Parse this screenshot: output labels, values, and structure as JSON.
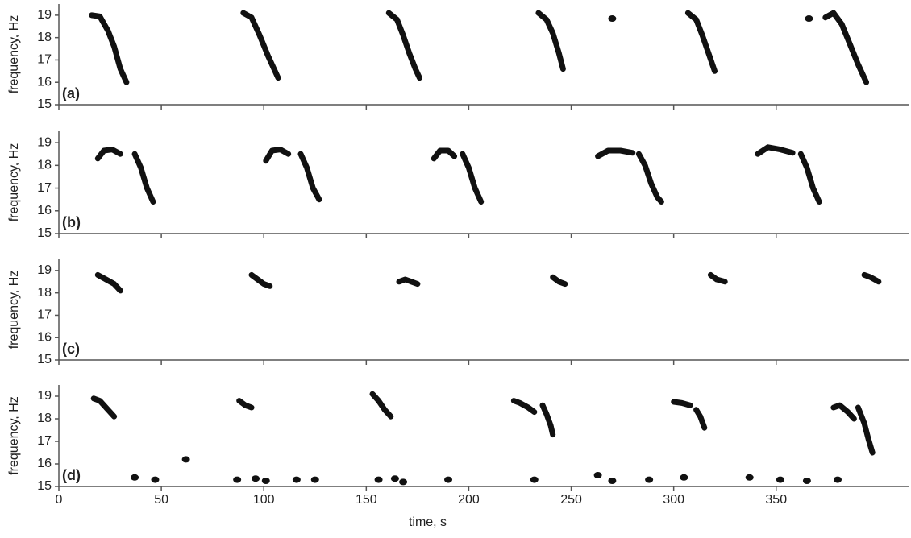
{
  "chart_data": [
    {
      "type": "spectrogram",
      "label": "(a)",
      "ylabel": "frequency, Hz",
      "color": "#111111",
      "xlim": [
        0,
        415
      ],
      "xticks": [
        0,
        50,
        100,
        150,
        200,
        250,
        300,
        350
      ],
      "ylim": [
        15,
        19.5
      ],
      "yticks": [
        15,
        16,
        17,
        18,
        19
      ],
      "calls": [
        {
          "x": [
            16,
            20,
            24,
            27,
            30,
            33
          ],
          "values": [
            19,
            18.95,
            18.3,
            17.6,
            16.6,
            16
          ]
        },
        {
          "x": [
            90,
            94,
            98,
            102,
            105,
            107
          ],
          "values": [
            19.1,
            18.9,
            18.1,
            17.2,
            16.6,
            16.2
          ]
        },
        {
          "x": [
            161,
            165,
            168,
            171,
            174,
            176
          ],
          "values": [
            19.1,
            18.8,
            18.1,
            17.3,
            16.6,
            16.2
          ]
        },
        {
          "x": [
            234,
            238,
            241,
            244,
            246
          ],
          "values": [
            19.1,
            18.8,
            18.2,
            17.3,
            16.6
          ]
        },
        {
          "x": [
            270
          ],
          "values": [
            18.85
          ]
        },
        {
          "x": [
            307,
            311,
            314,
            317,
            320
          ],
          "values": [
            19.1,
            18.8,
            18.1,
            17.3,
            16.5
          ]
        },
        {
          "x": [
            366
          ],
          "values": [
            18.85
          ]
        },
        {
          "x": [
            374,
            378,
            382,
            386,
            390,
            394
          ],
          "values": [
            18.9,
            19.1,
            18.6,
            17.7,
            16.8,
            16
          ]
        }
      ]
    },
    {
      "type": "spectrogram",
      "label": "(b)",
      "ylabel": "frequency, Hz",
      "color": "#111111",
      "xlim": [
        0,
        415
      ],
      "xticks": [
        0,
        50,
        100,
        150,
        200,
        250,
        300,
        350
      ],
      "ylim": [
        15,
        19.5
      ],
      "yticks": [
        15,
        16,
        17,
        18,
        19
      ],
      "calls": [
        {
          "x": [
            19,
            22,
            26,
            30
          ],
          "values": [
            18.3,
            18.65,
            18.7,
            18.5
          ]
        },
        {
          "x": [
            37,
            40,
            43,
            46
          ],
          "values": [
            18.5,
            17.9,
            17,
            16.4
          ]
        },
        {
          "x": [
            101,
            104,
            108,
            112
          ],
          "values": [
            18.2,
            18.65,
            18.7,
            18.5
          ]
        },
        {
          "x": [
            118,
            121,
            124,
            127
          ],
          "values": [
            18.5,
            17.9,
            17,
            16.5
          ]
        },
        {
          "x": [
            183,
            186,
            190,
            193
          ],
          "values": [
            18.3,
            18.65,
            18.65,
            18.4
          ]
        },
        {
          "x": [
            197,
            200,
            203,
            206
          ],
          "values": [
            18.5,
            17.9,
            17,
            16.4
          ]
        },
        {
          "x": [
            263,
            268,
            274,
            280
          ],
          "values": [
            18.4,
            18.65,
            18.65,
            18.55
          ]
        },
        {
          "x": [
            283,
            286,
            289,
            292,
            294
          ],
          "values": [
            18.5,
            18,
            17.2,
            16.6,
            16.4
          ]
        },
        {
          "x": [
            341,
            346,
            352,
            358
          ],
          "values": [
            18.5,
            18.8,
            18.7,
            18.55
          ]
        },
        {
          "x": [
            362,
            365,
            368,
            371
          ],
          "values": [
            18.5,
            17.9,
            17,
            16.4
          ]
        }
      ]
    },
    {
      "type": "spectrogram",
      "label": "(c)",
      "ylabel": "frequency, Hz",
      "color": "#111111",
      "xlim": [
        0,
        415
      ],
      "xticks": [
        0,
        50,
        100,
        150,
        200,
        250,
        300,
        350
      ],
      "ylim": [
        15,
        19.5
      ],
      "yticks": [
        15,
        16,
        17,
        18,
        19
      ],
      "calls": [
        {
          "x": [
            19,
            23,
            27,
            30
          ],
          "values": [
            18.8,
            18.6,
            18.4,
            18.1
          ]
        },
        {
          "x": [
            94,
            97,
            100,
            103
          ],
          "values": [
            18.8,
            18.6,
            18.4,
            18.3
          ]
        },
        {
          "x": [
            166,
            169,
            172,
            175
          ],
          "values": [
            18.5,
            18.6,
            18.5,
            18.4
          ]
        },
        {
          "x": [
            241,
            244,
            247
          ],
          "values": [
            18.7,
            18.5,
            18.4
          ]
        },
        {
          "x": [
            318,
            321,
            325
          ],
          "values": [
            18.8,
            18.6,
            18.5
          ]
        },
        {
          "x": [
            393,
            396,
            400
          ],
          "values": [
            18.8,
            18.7,
            18.5
          ]
        }
      ]
    },
    {
      "type": "spectrogram",
      "label": "(d)",
      "ylabel": "frequency, Hz",
      "xlabel": "time, s",
      "color": "#111111",
      "xlim": [
        0,
        415
      ],
      "xticks": [
        0,
        50,
        100,
        150,
        200,
        250,
        300,
        350
      ],
      "ylim": [
        15,
        19.5
      ],
      "yticks": [
        15,
        16,
        17,
        18,
        19
      ],
      "calls": [
        {
          "x": [
            17,
            20,
            24,
            27
          ],
          "values": [
            18.9,
            18.8,
            18.4,
            18.1
          ]
        },
        {
          "x": [
            88,
            91,
            94
          ],
          "values": [
            18.8,
            18.6,
            18.5
          ]
        },
        {
          "x": [
            153,
            156,
            159,
            162
          ],
          "values": [
            19.1,
            18.8,
            18.4,
            18.1
          ]
        },
        {
          "x": [
            222,
            225,
            229,
            232
          ],
          "values": [
            18.8,
            18.7,
            18.5,
            18.3
          ]
        },
        {
          "x": [
            236,
            238,
            240,
            241
          ],
          "values": [
            18.6,
            18.2,
            17.7,
            17.3
          ]
        },
        {
          "x": [
            300,
            304,
            308
          ],
          "values": [
            18.75,
            18.7,
            18.6
          ]
        },
        {
          "x": [
            311,
            313,
            315
          ],
          "values": [
            18.4,
            18.1,
            17.6
          ]
        },
        {
          "x": [
            378,
            381,
            385,
            388
          ],
          "values": [
            18.5,
            18.6,
            18.3,
            18
          ]
        },
        {
          "x": [
            390,
            393,
            395,
            397
          ],
          "values": [
            18.5,
            17.8,
            17.1,
            16.5
          ]
        },
        {
          "x": [
            37
          ],
          "values": [
            15.4
          ]
        },
        {
          "x": [
            47
          ],
          "values": [
            15.3
          ]
        },
        {
          "x": [
            62
          ],
          "values": [
            16.2
          ]
        },
        {
          "x": [
            87
          ],
          "values": [
            15.3
          ]
        },
        {
          "x": [
            96
          ],
          "values": [
            15.35
          ]
        },
        {
          "x": [
            101
          ],
          "values": [
            15.25
          ]
        },
        {
          "x": [
            116
          ],
          "values": [
            15.3
          ]
        },
        {
          "x": [
            125
          ],
          "values": [
            15.3
          ]
        },
        {
          "x": [
            156
          ],
          "values": [
            15.3
          ]
        },
        {
          "x": [
            164
          ],
          "values": [
            15.35
          ]
        },
        {
          "x": [
            168
          ],
          "values": [
            15.2
          ]
        },
        {
          "x": [
            190
          ],
          "values": [
            15.3
          ]
        },
        {
          "x": [
            232
          ],
          "values": [
            15.3
          ]
        },
        {
          "x": [
            263
          ],
          "values": [
            15.5
          ]
        },
        {
          "x": [
            270
          ],
          "values": [
            15.25
          ]
        },
        {
          "x": [
            288
          ],
          "values": [
            15.3
          ]
        },
        {
          "x": [
            305
          ],
          "values": [
            15.4
          ]
        },
        {
          "x": [
            337
          ],
          "values": [
            15.4
          ]
        },
        {
          "x": [
            352
          ],
          "values": [
            15.3
          ]
        },
        {
          "x": [
            365
          ],
          "values": [
            15.25
          ]
        },
        {
          "x": [
            380
          ],
          "values": [
            15.3
          ]
        }
      ]
    }
  ]
}
